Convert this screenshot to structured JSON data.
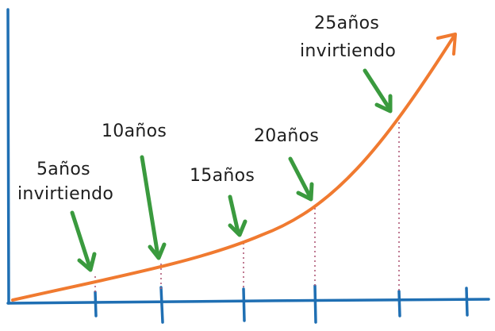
{
  "colors": {
    "axis": "#1f6fb3",
    "curve": "#f07a30",
    "arrow": "#3a9a3e",
    "guide": "#b05a78",
    "text": "#1e1e1e"
  },
  "labels": [
    {
      "id": "label-5",
      "lines": [
        "5años",
        "invirtiendo"
      ]
    },
    {
      "id": "label-10",
      "lines": [
        "10años"
      ]
    },
    {
      "id": "label-15",
      "lines": [
        "15años"
      ]
    },
    {
      "id": "label-20",
      "lines": [
        "20años"
      ]
    },
    {
      "id": "label-25",
      "lines": [
        "25años",
        "invirtiendo"
      ]
    }
  ]
}
